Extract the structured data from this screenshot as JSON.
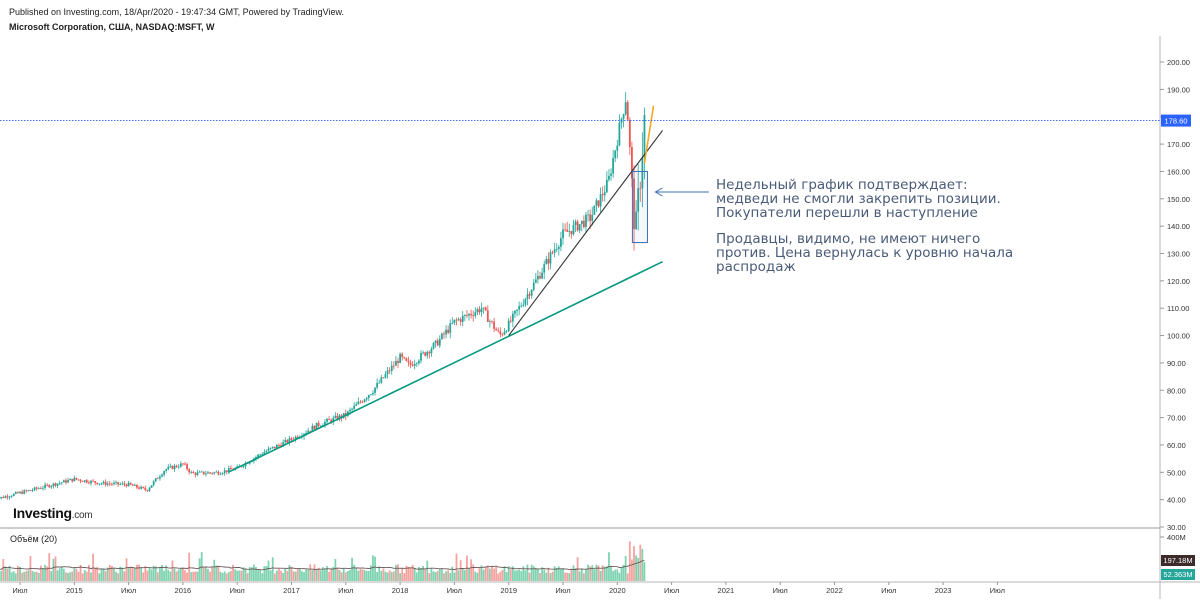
{
  "header": {
    "published": "Published on Investing.com, 18/Apr/2020 - 19:47:34 GMT, Powered by TradingView.",
    "symbol": "Microsoft Corporation, США, NASDAQ:MSFT, W"
  },
  "logo": {
    "main": "Investing",
    "suffix": ".com"
  },
  "annotation": {
    "lines": [
      "Недельный график подтверждает:",
      "медведи не смогли закрепить позиции.",
      "Покупатели перешли в наступление",
      "Продавцы, видимо, не имеют ничего",
      "против. Цена вернулась к уровню начала",
      "распродаж"
    ]
  },
  "volume_panel": {
    "title": "Объём (20)",
    "tick_label": "400M",
    "ma_badge": "197.18M",
    "last_badge": "52.363M"
  },
  "colors": {
    "up": "#26a69a",
    "down": "#ef5350",
    "vol_up": "#7fd3b1",
    "vol_down": "#f5a3a0",
    "price_line": "#2962ff",
    "trend_main": "#089981",
    "trend_steep": "#333333",
    "trend_orange": "#f5a623",
    "box": "#3c6fb4",
    "annotation": "#4a5b78"
  },
  "chart_data": {
    "type": "candlestick",
    "timeframe": "weekly",
    "y_ticks": [
      "200.00",
      "190.00",
      "180.00",
      "170.00",
      "160.00",
      "150.00",
      "140.00",
      "130.00",
      "120.00",
      "110.00",
      "100.00",
      "90.00",
      "80.00",
      "70.00",
      "60.00",
      "50.00",
      "40.00",
      "30.00"
    ],
    "ylim": [
      28,
      208
    ],
    "x_ticks": [
      "Июл",
      "2015",
      "Июл",
      "2016",
      "Июл",
      "2017",
      "Июл",
      "2018",
      "Июл",
      "2019",
      "Июл",
      "2020",
      "Июл",
      "2021",
      "Июл",
      "2022",
      "Июл",
      "2023",
      "Июл"
    ],
    "current_price": 178.6,
    "current_price_label": "178.60",
    "price_path": [
      [
        "2014-04",
        40.0
      ],
      [
        "2014-07",
        42.5
      ],
      [
        "2014-10",
        45.0
      ],
      [
        "2015-01",
        47.5
      ],
      [
        "2015-04",
        46.0
      ],
      [
        "2015-07",
        45.5
      ],
      [
        "2015-09",
        43.5
      ],
      [
        "2015-11",
        51.0
      ],
      [
        "2016-01",
        53.0
      ],
      [
        "2016-02",
        49.5
      ],
      [
        "2016-05",
        50.0
      ],
      [
        "2016-07",
        51.5
      ],
      [
        "2016-10",
        57.5
      ],
      [
        "2017-01",
        62.0
      ],
      [
        "2017-04",
        67.5
      ],
      [
        "2017-07",
        71.0
      ],
      [
        "2017-10",
        80.0
      ],
      [
        "2018-01",
        92.0
      ],
      [
        "2018-02",
        89.0
      ],
      [
        "2018-05",
        97.0
      ],
      [
        "2018-07",
        105.0
      ],
      [
        "2018-10",
        110.0
      ],
      [
        "2018-12",
        100.0
      ],
      [
        "2019-01",
        104.0
      ],
      [
        "2019-04",
        120.0
      ],
      [
        "2019-07",
        137.0
      ],
      [
        "2019-10",
        143.0
      ],
      [
        "2019-12",
        156.0
      ],
      [
        "2020-02",
        188.0
      ],
      [
        "2020-03",
        136.0
      ],
      [
        "2020-04",
        178.6
      ]
    ],
    "trendlines": [
      {
        "name": "long-term support",
        "from": [
          "2016-06",
          50.0
        ],
        "to": [
          "2020-06",
          127.0
        ]
      },
      {
        "name": "steep support",
        "from": [
          "2019-01",
          100.0
        ],
        "to": [
          "2020-06",
          175.0
        ]
      },
      {
        "name": "rebound",
        "from": [
          "2020-04",
          163.0
        ],
        "to": [
          "2020-05",
          184.0
        ]
      }
    ],
    "highlight_box": {
      "from": "2020-03",
      "to": "2020-04",
      "low": 134.0,
      "high": 160.0
    },
    "volume": {
      "ma_value": "197.18M",
      "last_value": "52.363M",
      "max_tick": "400M"
    }
  }
}
